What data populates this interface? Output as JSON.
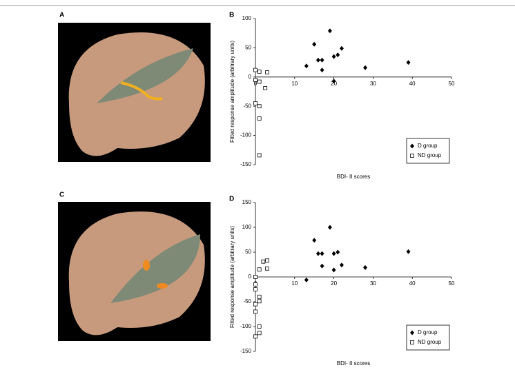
{
  "images": [
    {
      "label": "A"
    },
    {
      "label": "C"
    }
  ],
  "chart_data": [
    {
      "type": "scatter",
      "title": "B",
      "y_label": "Fitted response amplitude (arbitrary units)",
      "x_label": "BDI- II scores",
      "xlim": [
        0,
        50
      ],
      "xticks": [
        0,
        10,
        20,
        30,
        40,
        50
      ],
      "ylim": [
        -150,
        100
      ],
      "yticks": [
        -150,
        -100,
        -50,
        0,
        50,
        100
      ],
      "legend": "lower right",
      "series": [
        {
          "name": "D group",
          "color": "#000000",
          "marker": "diamond",
          "x": [
            19,
            15,
            13,
            16,
            17,
            17,
            20,
            21,
            22,
            20,
            28,
            39
          ],
          "values": [
            79,
            56,
            19,
            29,
            29,
            12,
            35,
            38,
            49,
            -7,
            16,
            25
          ]
        },
        {
          "name": "ND group",
          "color": "#000000",
          "marker": "square",
          "x": [
            0,
            0,
            1,
            3,
            1,
            2.5,
            0,
            1,
            1,
            1
          ],
          "values": [
            12,
            -5,
            9,
            8,
            -8,
            -19,
            -45,
            -50,
            -71,
            -134
          ]
        }
      ]
    },
    {
      "type": "scatter",
      "title": "D",
      "y_label": "Fitted response amplitude (arbitrary units)",
      "x_label": "BDI- II scores",
      "xlim": [
        0,
        50
      ],
      "xticks": [
        0,
        10,
        20,
        30,
        40,
        50
      ],
      "ylim": [
        -150,
        150
      ],
      "yticks": [
        -150,
        -100,
        -50,
        0,
        50,
        100,
        150
      ],
      "legend": "lower right",
      "series": [
        {
          "name": "D group",
          "color": "#000000",
          "marker": "diamond",
          "x": [
            19,
            15,
            16,
            17,
            17,
            20,
            21,
            22,
            20,
            13,
            28,
            39
          ],
          "values": [
            100,
            74,
            47,
            47,
            22,
            47,
            50,
            24,
            14,
            -6,
            19,
            51
          ]
        },
        {
          "name": "ND group",
          "color": "#000000",
          "marker": "square",
          "x": [
            1,
            2,
            3,
            3,
            0,
            0,
            0,
            1,
            1,
            0,
            0,
            1,
            1,
            0
          ],
          "values": [
            15,
            31,
            33,
            17,
            0,
            -15,
            -25,
            -40,
            -49,
            -55,
            -70,
            -100,
            -113,
            -120
          ]
        }
      ]
    }
  ]
}
